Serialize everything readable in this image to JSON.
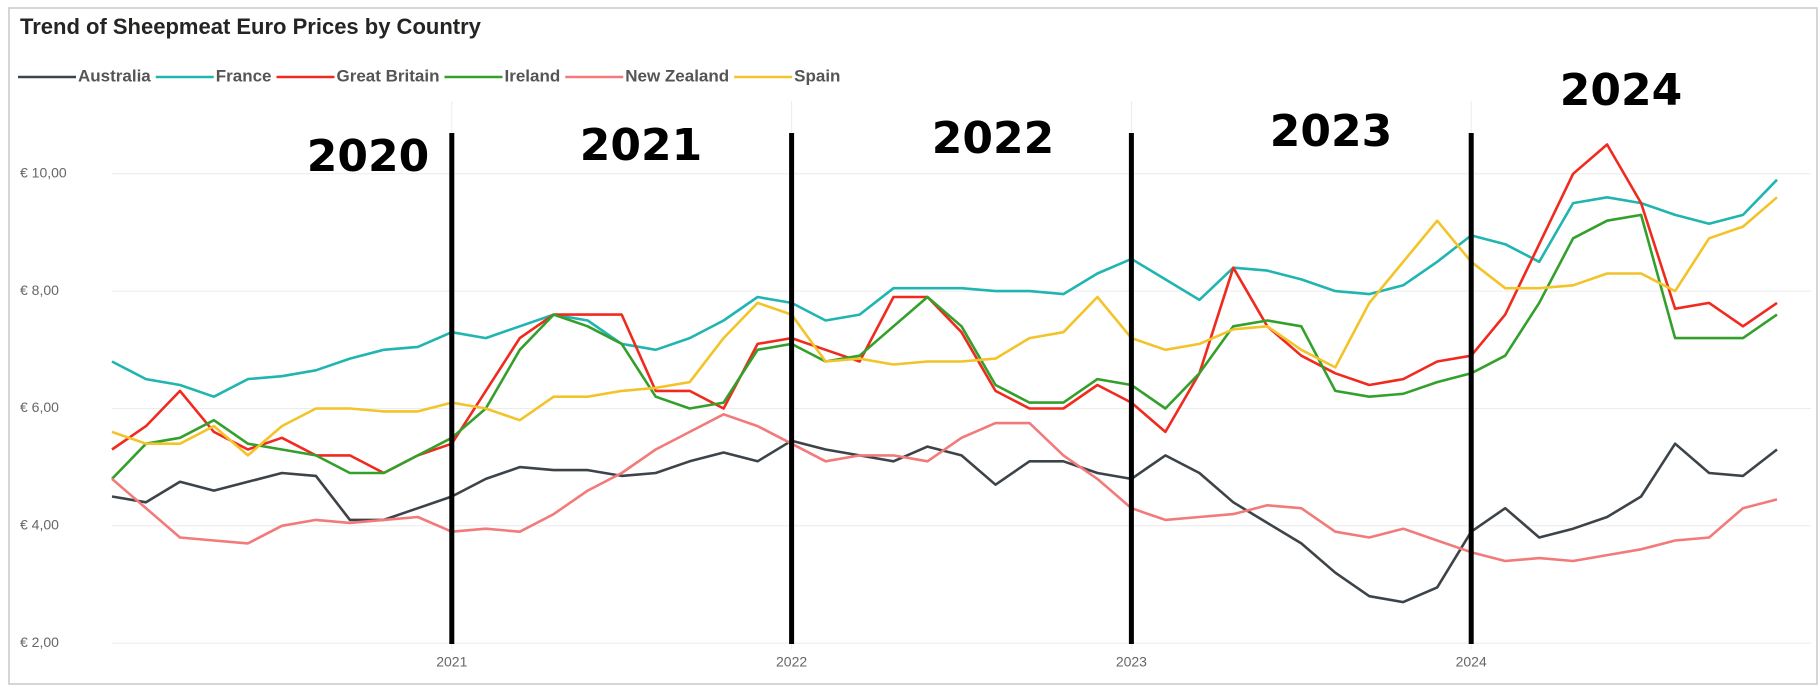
{
  "chart_data": {
    "type": "line",
    "title": "Trend of Sheepmeat Euro Prices by Country",
    "x": [
      2020.0,
      2020.1,
      2020.2,
      2020.3,
      2020.4,
      2020.5,
      2020.6,
      2020.7,
      2020.8,
      2020.9,
      2021.0,
      2021.1,
      2021.2,
      2021.3,
      2021.4,
      2021.5,
      2021.6,
      2021.7,
      2021.8,
      2021.9,
      2022.0,
      2022.1,
      2022.2,
      2022.3,
      2022.4,
      2022.5,
      2022.6,
      2022.7,
      2022.8,
      2022.9,
      2023.0,
      2023.1,
      2023.2,
      2023.3,
      2023.4,
      2023.5,
      2023.6,
      2023.7,
      2023.8,
      2023.9,
      2024.0,
      2024.1,
      2024.2,
      2024.3,
      2024.4,
      2024.5,
      2024.6,
      2024.7,
      2024.8,
      2024.9
    ],
    "series": [
      {
        "name": "Australia",
        "color": "#3d4449",
        "values": [
          4.5,
          4.4,
          4.75,
          4.6,
          4.75,
          4.9,
          4.85,
          4.1,
          4.1,
          4.3,
          4.5,
          4.8,
          5.0,
          4.95,
          4.95,
          4.85,
          4.9,
          5.1,
          5.25,
          5.1,
          5.45,
          5.3,
          5.2,
          5.1,
          5.35,
          5.2,
          4.7,
          5.1,
          5.1,
          4.9,
          4.8,
          5.2,
          4.9,
          4.4,
          4.05,
          3.7,
          3.2,
          2.8,
          2.7,
          2.95,
          3.9,
          4.3,
          3.8,
          3.95,
          4.15,
          4.5,
          5.4,
          4.9,
          4.85,
          5.3
        ]
      },
      {
        "name": "France",
        "color": "#20b5b0",
        "values": [
          6.8,
          6.5,
          6.4,
          6.2,
          6.5,
          6.55,
          6.65,
          6.85,
          7.0,
          7.05,
          7.3,
          7.2,
          7.4,
          7.6,
          7.5,
          7.1,
          7.0,
          7.2,
          7.5,
          7.9,
          7.8,
          7.5,
          7.6,
          8.05,
          8.05,
          8.05,
          8.0,
          8.0,
          7.95,
          8.3,
          8.55,
          8.2,
          7.85,
          8.4,
          8.35,
          8.2,
          8.0,
          7.95,
          8.1,
          8.5,
          8.95,
          8.8,
          8.5,
          9.5,
          9.6,
          9.5,
          9.3,
          9.15,
          9.3,
          9.9
        ]
      },
      {
        "name": "Great Britain",
        "color": "#f02a1e",
        "values": [
          5.3,
          5.7,
          6.3,
          5.6,
          5.3,
          5.5,
          5.2,
          5.2,
          4.9,
          5.2,
          5.4,
          6.3,
          7.2,
          7.6,
          7.6,
          7.6,
          6.3,
          6.3,
          6.0,
          7.1,
          7.2,
          7.0,
          6.8,
          7.9,
          7.9,
          7.3,
          6.3,
          6.0,
          6.0,
          6.4,
          6.1,
          5.6,
          6.6,
          8.4,
          7.4,
          6.9,
          6.6,
          6.4,
          6.5,
          6.8,
          6.9,
          7.6,
          8.8,
          10.0,
          10.5,
          9.5,
          7.7,
          7.8,
          7.4,
          7.8
        ]
      },
      {
        "name": "Ireland",
        "color": "#33a02c",
        "values": [
          4.8,
          5.4,
          5.5,
          5.8,
          5.4,
          5.3,
          5.2,
          4.9,
          4.9,
          5.2,
          5.5,
          6.0,
          7.0,
          7.6,
          7.4,
          7.1,
          6.2,
          6.0,
          6.1,
          7.0,
          7.1,
          6.8,
          6.9,
          7.4,
          7.9,
          7.4,
          6.4,
          6.1,
          6.1,
          6.5,
          6.4,
          6.0,
          6.6,
          7.4,
          7.5,
          7.4,
          6.3,
          6.2,
          6.25,
          6.45,
          6.6,
          6.9,
          7.8,
          8.9,
          9.2,
          9.3,
          7.2,
          7.2,
          7.2,
          7.6
        ]
      },
      {
        "name": "New Zealand",
        "color": "#f27a7a",
        "values": [
          4.8,
          4.3,
          3.8,
          3.75,
          3.7,
          4.0,
          4.1,
          4.05,
          4.1,
          4.15,
          3.9,
          3.95,
          3.9,
          4.2,
          4.6,
          4.9,
          5.3,
          5.6,
          5.9,
          5.7,
          5.4,
          5.1,
          5.2,
          5.2,
          5.1,
          5.5,
          5.75,
          5.75,
          5.2,
          4.8,
          4.3,
          4.1,
          4.15,
          4.2,
          4.35,
          4.3,
          3.9,
          3.8,
          3.95,
          3.75,
          3.55,
          3.4,
          3.45,
          3.4,
          3.5,
          3.6,
          3.75,
          3.8,
          4.3,
          4.45
        ]
      },
      {
        "name": "Spain",
        "color": "#f2c42a",
        "values": [
          5.6,
          5.4,
          5.4,
          5.7,
          5.2,
          5.7,
          6.0,
          6.0,
          5.95,
          5.95,
          6.1,
          6.0,
          5.8,
          6.2,
          6.2,
          6.3,
          6.35,
          6.45,
          7.2,
          7.8,
          7.6,
          6.8,
          6.85,
          6.75,
          6.8,
          6.8,
          6.85,
          7.2,
          7.3,
          7.9,
          7.2,
          7.0,
          7.1,
          7.35,
          7.4,
          7.0,
          6.7,
          7.8,
          8.5,
          9.2,
          8.5,
          8.05,
          8.05,
          8.1,
          8.3,
          8.3,
          8.0,
          8.9,
          9.1,
          9.6
        ]
      }
    ],
    "xlim": [
      2020,
      2025
    ],
    "xticks": [
      2021,
      2022,
      2023,
      2024
    ],
    "ylim": [
      1.9,
      10.9
    ],
    "yticks": [
      {
        "value": 2,
        "label": "€ 2,00"
      },
      {
        "value": 4,
        "label": "€ 4,00"
      },
      {
        "value": 6,
        "label": "€ 6,00"
      },
      {
        "value": 8,
        "label": "€ 8,00"
      },
      {
        "value": 10,
        "label": "€ 10,00"
      }
    ],
    "grid": true,
    "legend": "top-left",
    "annotations": [
      "2020",
      "2021",
      "2022",
      "2023",
      "2024"
    ]
  }
}
